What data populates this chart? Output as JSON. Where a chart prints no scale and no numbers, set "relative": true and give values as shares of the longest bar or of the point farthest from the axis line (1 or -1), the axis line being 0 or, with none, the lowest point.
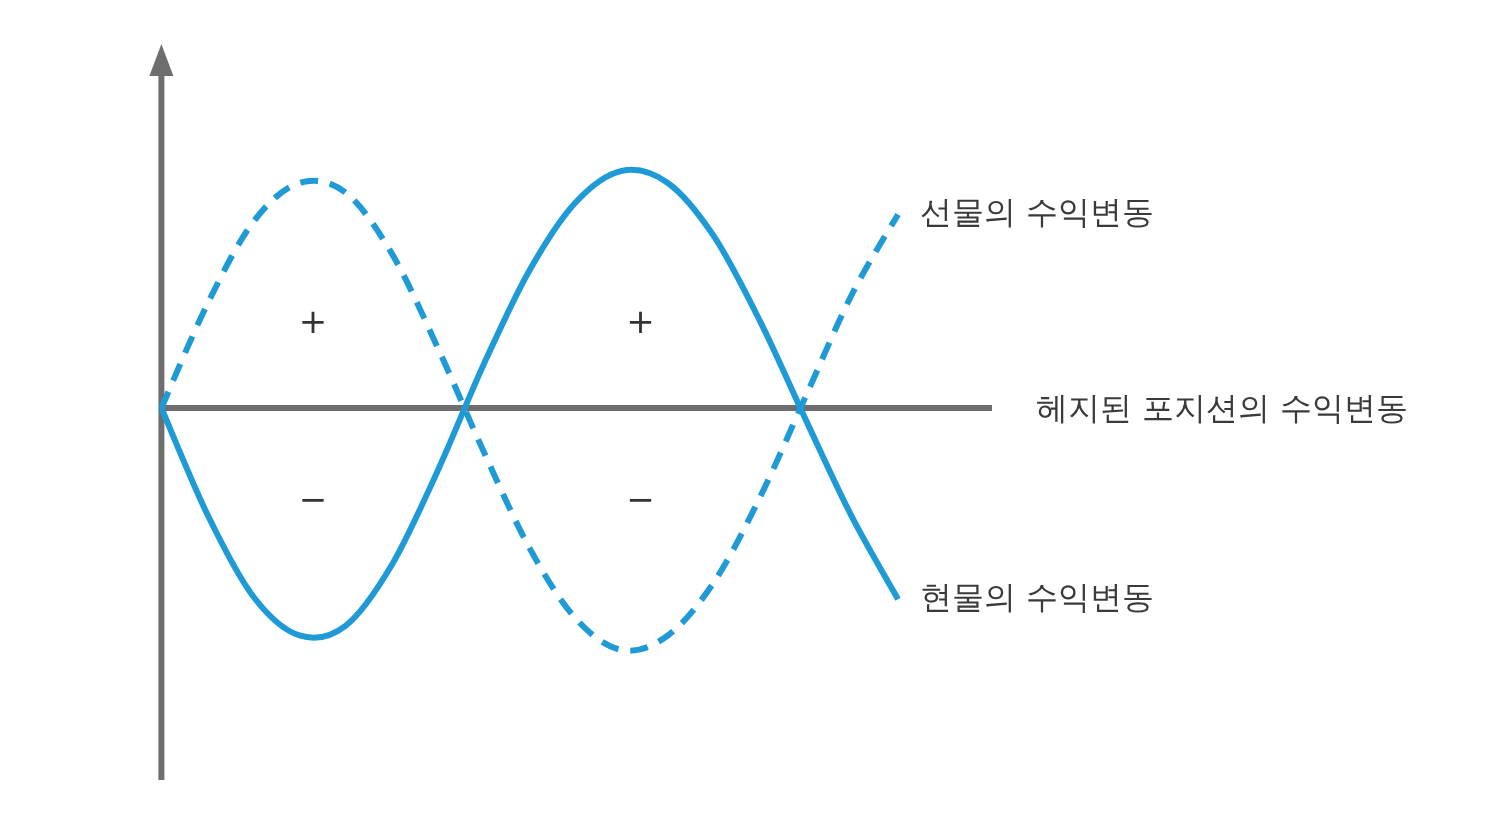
{
  "chart_data": {
    "type": "line",
    "relative": true,
    "categories": [
      null,
      null,
      null,
      null,
      null,
      null,
      null,
      null,
      null,
      null,
      null,
      null,
      null,
      null,
      null,
      null,
      null
    ],
    "series": [
      {
        "name": "선물의 수익변동",
        "color": "#1e9bd7",
        "line_style": "dashed",
        "values": [
          0,
          0.43,
          0.77,
          0.93,
          0.89,
          0.64,
          0.25,
          -0.18,
          -0.58,
          -0.87,
          -1.0,
          -0.94,
          -0.72,
          -0.37,
          0.05,
          0.47,
          0.8
        ]
      },
      {
        "name": "현물의 수익변동",
        "color": "#1e9bd7",
        "line_style": "solid",
        "values": [
          0,
          -0.44,
          -0.78,
          -0.94,
          -0.9,
          -0.65,
          -0.26,
          0.18,
          0.57,
          0.85,
          0.98,
          0.93,
          0.71,
          0.36,
          -0.05,
          -0.45,
          -0.79
        ]
      }
    ],
    "ref_lines": [
      {
        "axis": "y",
        "value": 0,
        "label": "헤지된 포지션의 수익변동",
        "color": "#6e6e6e"
      }
    ],
    "annotations": [
      "+",
      "−",
      "+",
      "−"
    ]
  }
}
